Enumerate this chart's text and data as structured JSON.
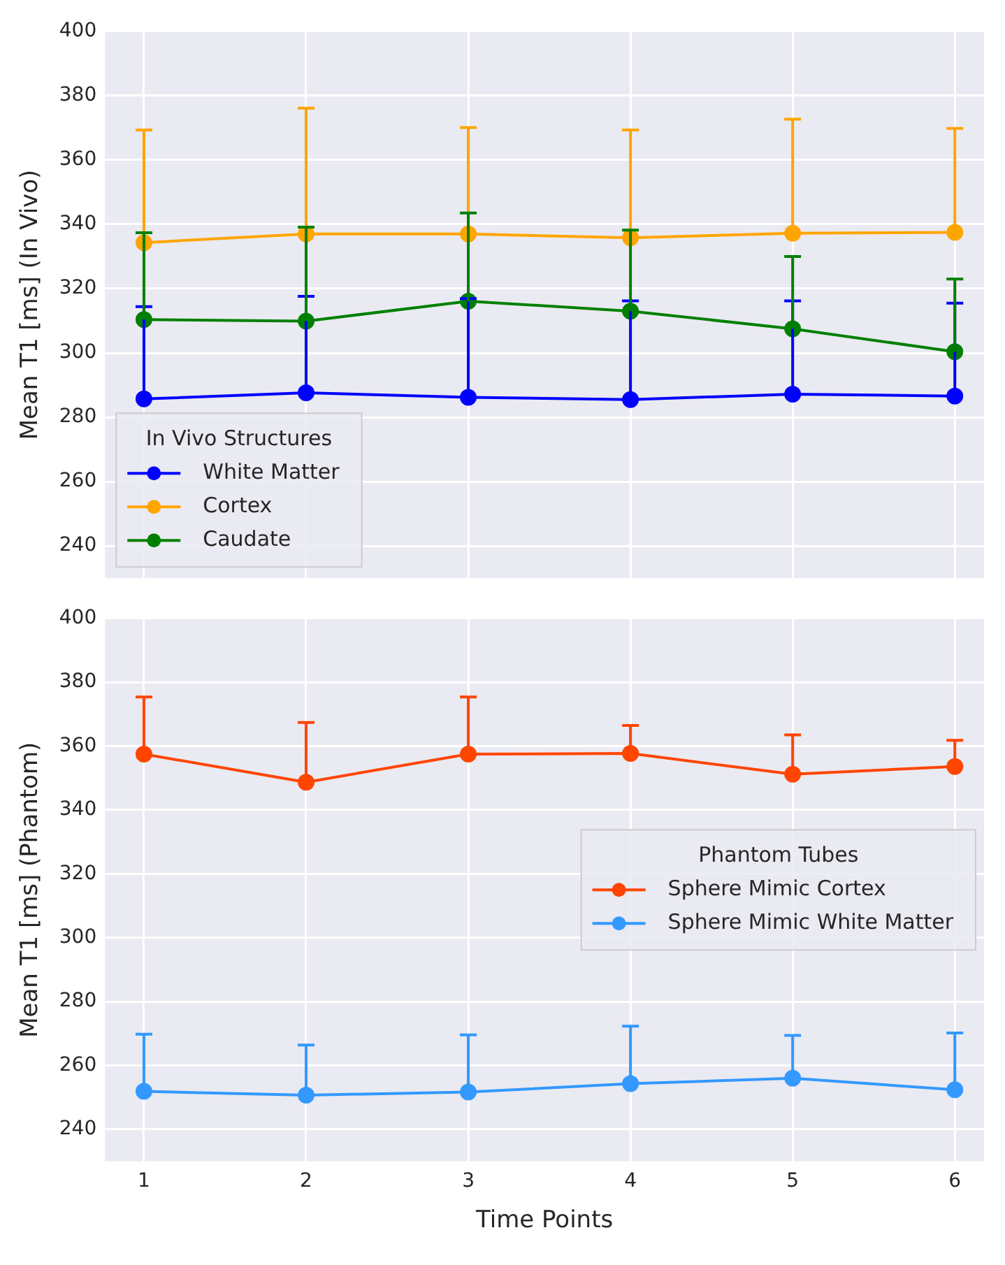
{
  "chart_data": [
    {
      "type": "line",
      "ylabel": "Mean T1 [ms] (In Vivo)",
      "legend_title": "In Vivo Structures",
      "legend": "bottom left",
      "tick_labels": "y",
      "grid": true,
      "marker": "circle",
      "x": [
        1,
        2,
        3,
        4,
        5,
        6
      ],
      "xlim": [
        0.76,
        6.18
      ],
      "xticks": [
        1,
        2,
        3,
        4,
        5,
        6
      ],
      "ylim": [
        230,
        400
      ],
      "yticks": [
        240,
        260,
        280,
        300,
        320,
        340,
        360,
        380,
        400
      ],
      "series": [
        {
          "name": "White Matter",
          "color": "#0000ff",
          "values": [
            285.7,
            287.6,
            286.2,
            285.5,
            287.2,
            286.6
          ],
          "errors": [
            [
              285.7,
              314.4
            ],
            [
              287.6,
              317.6
            ],
            [
              286.2,
              316.9
            ],
            [
              285.5,
              316.2
            ],
            [
              287.2,
              316.2
            ],
            [
              286.6,
              315.5
            ]
          ]
        },
        {
          "name": "Cortex",
          "color": "#ffa500",
          "values": [
            334.3,
            337.0,
            337.0,
            335.8,
            337.2,
            337.5
          ],
          "errors": [
            [
              334.3,
              369.3
            ],
            [
              337.0,
              376.1
            ],
            [
              337.0,
              370.1
            ],
            [
              335.8,
              369.3
            ],
            [
              337.2,
              372.7
            ],
            [
              337.5,
              369.8
            ]
          ]
        },
        {
          "name": "Caudate",
          "color": "#008000",
          "values": [
            310.4,
            309.9,
            316.1,
            313.0,
            307.5,
            300.4
          ],
          "errors": [
            [
              310.4,
              337.4
            ],
            [
              309.9,
              339.1
            ],
            [
              316.1,
              343.5
            ],
            [
              313.0,
              338.2
            ],
            [
              307.5,
              330.0
            ],
            [
              300.4,
              323.0
            ]
          ]
        }
      ]
    },
    {
      "type": "line",
      "xlabel": "Time Points",
      "ylabel": "Mean T1 [ms] (Phantom)",
      "legend_title": "Phantom Tubes",
      "legend": "right",
      "grid": true,
      "marker": "circle",
      "x": [
        1,
        2,
        3,
        4,
        5,
        6
      ],
      "xlim": [
        0.76,
        6.18
      ],
      "xticks": [
        1,
        2,
        3,
        4,
        5,
        6
      ],
      "ylim": [
        230,
        400
      ],
      "yticks": [
        240,
        260,
        280,
        300,
        320,
        340,
        360,
        380,
        400
      ],
      "series": [
        {
          "name": "Sphere Mimic Cortex",
          "color": "#ff4500",
          "values": [
            357.5,
            348.7,
            357.5,
            357.7,
            351.2,
            353.6
          ],
          "errors": [
            [
              357.5,
              375.4
            ],
            [
              348.7,
              367.4
            ],
            [
              357.5,
              375.4
            ],
            [
              357.7,
              366.5
            ],
            [
              351.2,
              363.5
            ],
            [
              353.6,
              361.8
            ]
          ]
        },
        {
          "name": "Sphere Mimic White Matter",
          "color": "#3399ff",
          "values": [
            251.9,
            250.7,
            251.7,
            254.3,
            256.0,
            252.4
          ],
          "errors": [
            [
              251.9,
              269.8
            ],
            [
              250.7,
              266.4
            ],
            [
              251.7,
              269.6
            ],
            [
              254.3,
              272.3
            ],
            [
              256.0,
              269.4
            ],
            [
              252.4,
              270.2
            ]
          ]
        }
      ]
    }
  ]
}
